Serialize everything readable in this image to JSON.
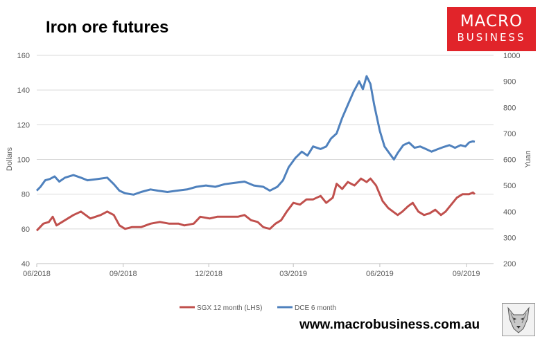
{
  "header": {
    "title": "Iron ore futures"
  },
  "brand": {
    "logo_line1": "MACRO",
    "logo_line2": "BUSINESS",
    "url": "www.macrobusiness.com.au"
  },
  "colors": {
    "sgx": "#c0504d",
    "dce": "#4f81bd",
    "logo_bg": "#e1242a"
  },
  "chart_data": {
    "type": "line",
    "title": "Iron ore futures",
    "x_type": "date",
    "x_range": [
      "2018-06-01",
      "2019-09-30"
    ],
    "x_ticks": [
      {
        "date": "2018-06-01",
        "label": "06/2018"
      },
      {
        "date": "2018-09-01",
        "label": "09/2018"
      },
      {
        "date": "2018-12-01",
        "label": "12/2018"
      },
      {
        "date": "2019-03-01",
        "label": "03/2019"
      },
      {
        "date": "2019-06-01",
        "label": "06/2019"
      },
      {
        "date": "2019-09-01",
        "label": "09/2019"
      }
    ],
    "y_left": {
      "label": "Dollars",
      "range": [
        40,
        160
      ],
      "ticks": [
        "40",
        "60",
        "80",
        "100",
        "120",
        "140",
        "160"
      ]
    },
    "y_right": {
      "label": "Yuan",
      "range": [
        200,
        1000
      ],
      "ticks": [
        "200",
        "300",
        "400",
        "500",
        "600",
        "700",
        "800",
        "900",
        "1000"
      ]
    },
    "grid": true,
    "legend_position": "bottom",
    "series": [
      {
        "name": "SGX 12 month (LHS)",
        "axis": "left",
        "color": "#c0504d",
        "points": [
          [
            "2018-06-01",
            59
          ],
          [
            "2018-06-08",
            63
          ],
          [
            "2018-06-14",
            64
          ],
          [
            "2018-06-18",
            67
          ],
          [
            "2018-06-22",
            62
          ],
          [
            "2018-07-01",
            65
          ],
          [
            "2018-07-10",
            68
          ],
          [
            "2018-07-18",
            70
          ],
          [
            "2018-07-28",
            66
          ],
          [
            "2018-08-08",
            68
          ],
          [
            "2018-08-15",
            70
          ],
          [
            "2018-08-22",
            68
          ],
          [
            "2018-08-28",
            62
          ],
          [
            "2018-09-03",
            60
          ],
          [
            "2018-09-10",
            61
          ],
          [
            "2018-09-20",
            61
          ],
          [
            "2018-09-30",
            63
          ],
          [
            "2018-10-10",
            64
          ],
          [
            "2018-10-20",
            63
          ],
          [
            "2018-10-30",
            63
          ],
          [
            "2018-11-05",
            62
          ],
          [
            "2018-11-15",
            63
          ],
          [
            "2018-11-22",
            67
          ],
          [
            "2018-12-02",
            66
          ],
          [
            "2018-12-10",
            67
          ],
          [
            "2018-12-20",
            67
          ],
          [
            "2019-01-01",
            67
          ],
          [
            "2019-01-08",
            68
          ],
          [
            "2019-01-15",
            65
          ],
          [
            "2019-01-22",
            64
          ],
          [
            "2019-01-28",
            61
          ],
          [
            "2019-02-04",
            60
          ],
          [
            "2019-02-10",
            63
          ],
          [
            "2019-02-16",
            65
          ],
          [
            "2019-02-22",
            70
          ],
          [
            "2019-03-01",
            75
          ],
          [
            "2019-03-08",
            74
          ],
          [
            "2019-03-15",
            77
          ],
          [
            "2019-03-22",
            77
          ],
          [
            "2019-03-30",
            79
          ],
          [
            "2019-04-05",
            75
          ],
          [
            "2019-04-12",
            78
          ],
          [
            "2019-04-16",
            86
          ],
          [
            "2019-04-22",
            83
          ],
          [
            "2019-04-28",
            87
          ],
          [
            "2019-05-05",
            85
          ],
          [
            "2019-05-12",
            89
          ],
          [
            "2019-05-18",
            87
          ],
          [
            "2019-05-22",
            89
          ],
          [
            "2019-05-28",
            85
          ],
          [
            "2019-06-04",
            76
          ],
          [
            "2019-06-10",
            72
          ],
          [
            "2019-06-15",
            70
          ],
          [
            "2019-06-20",
            68
          ],
          [
            "2019-06-25",
            70
          ],
          [
            "2019-07-01",
            73
          ],
          [
            "2019-07-06",
            75
          ],
          [
            "2019-07-12",
            70
          ],
          [
            "2019-07-18",
            68
          ],
          [
            "2019-07-24",
            69
          ],
          [
            "2019-07-30",
            71
          ],
          [
            "2019-08-05",
            68
          ],
          [
            "2019-08-10",
            70
          ],
          [
            "2019-08-16",
            74
          ],
          [
            "2019-08-22",
            78
          ],
          [
            "2019-08-28",
            80
          ],
          [
            "2019-09-04",
            80
          ],
          [
            "2019-09-08",
            81
          ],
          [
            "2019-09-10",
            80
          ]
        ]
      },
      {
        "name": "DCE 6 month",
        "axis": "right",
        "color": "#4f81bd",
        "points": [
          [
            "2018-06-01",
            480
          ],
          [
            "2018-06-05",
            495
          ],
          [
            "2018-06-10",
            520
          ],
          [
            "2018-06-15",
            525
          ],
          [
            "2018-06-20",
            535
          ],
          [
            "2018-06-25",
            515
          ],
          [
            "2018-07-01",
            530
          ],
          [
            "2018-07-10",
            540
          ],
          [
            "2018-07-18",
            530
          ],
          [
            "2018-07-25",
            520
          ],
          [
            "2018-08-05",
            525
          ],
          [
            "2018-08-15",
            530
          ],
          [
            "2018-08-22",
            505
          ],
          [
            "2018-08-28",
            480
          ],
          [
            "2018-09-03",
            470
          ],
          [
            "2018-09-12",
            465
          ],
          [
            "2018-09-20",
            475
          ],
          [
            "2018-09-30",
            485
          ],
          [
            "2018-10-08",
            480
          ],
          [
            "2018-10-18",
            475
          ],
          [
            "2018-10-28",
            480
          ],
          [
            "2018-11-08",
            485
          ],
          [
            "2018-11-18",
            495
          ],
          [
            "2018-11-28",
            500
          ],
          [
            "2018-12-08",
            495
          ],
          [
            "2018-12-18",
            505
          ],
          [
            "2018-12-28",
            510
          ],
          [
            "2019-01-08",
            515
          ],
          [
            "2019-01-18",
            500
          ],
          [
            "2019-01-28",
            495
          ],
          [
            "2019-02-04",
            480
          ],
          [
            "2019-02-12",
            495
          ],
          [
            "2019-02-18",
            520
          ],
          [
            "2019-02-24",
            570
          ],
          [
            "2019-03-03",
            605
          ],
          [
            "2019-03-10",
            630
          ],
          [
            "2019-03-16",
            615
          ],
          [
            "2019-03-22",
            650
          ],
          [
            "2019-03-30",
            640
          ],
          [
            "2019-04-05",
            650
          ],
          [
            "2019-04-10",
            680
          ],
          [
            "2019-04-16",
            700
          ],
          [
            "2019-04-22",
            760
          ],
          [
            "2019-04-28",
            810
          ],
          [
            "2019-05-04",
            860
          ],
          [
            "2019-05-10",
            900
          ],
          [
            "2019-05-14",
            870
          ],
          [
            "2019-05-18",
            920
          ],
          [
            "2019-05-22",
            890
          ],
          [
            "2019-05-26",
            810
          ],
          [
            "2019-06-01",
            710
          ],
          [
            "2019-06-06",
            650
          ],
          [
            "2019-06-12",
            620
          ],
          [
            "2019-06-16",
            600
          ],
          [
            "2019-06-20",
            625
          ],
          [
            "2019-06-26",
            655
          ],
          [
            "2019-07-02",
            665
          ],
          [
            "2019-07-08",
            645
          ],
          [
            "2019-07-14",
            650
          ],
          [
            "2019-07-20",
            640
          ],
          [
            "2019-07-26",
            630
          ],
          [
            "2019-08-02",
            640
          ],
          [
            "2019-08-08",
            648
          ],
          [
            "2019-08-14",
            655
          ],
          [
            "2019-08-20",
            645
          ],
          [
            "2019-08-26",
            655
          ],
          [
            "2019-08-31",
            650
          ],
          [
            "2019-09-04",
            665
          ],
          [
            "2019-09-08",
            670
          ],
          [
            "2019-09-10",
            668
          ]
        ]
      }
    ]
  }
}
